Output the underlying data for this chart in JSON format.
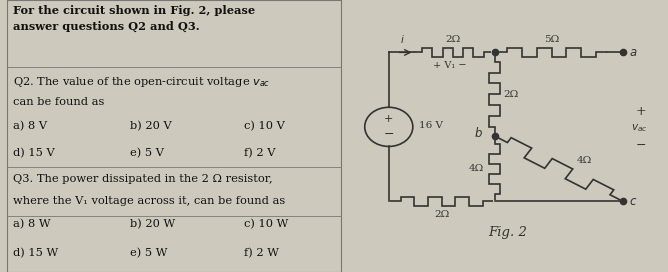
{
  "bg_color": "#cdc9bc",
  "text_color": "#111111",
  "title_bold": "For the circuit shown in Fig. 2, please\nanswer questions Q2 and Q3.",
  "q2_text_line1": "Q2. The value of the open-circuit voltage $v_{ac}$",
  "q2_text_line2": "can be found as",
  "q2_opts_row1": [
    "a) 8 V",
    "b) 20 V",
    "c) 10 V"
  ],
  "q2_opts_row2": [
    "d) 15 V",
    "e) 5 V",
    "f) 2 V"
  ],
  "q3_text_line1": "Q3. The power dissipated in the 2 Ω resistor,",
  "q3_text_line2": "where the V₁ voltage across it, can be found as",
  "q3_opts_row1": [
    "a) 8 W",
    "b) 20 W",
    "c) 10 W"
  ],
  "q3_opts_row2": [
    "d) 15 W",
    "e) 5 W",
    "f) 2 W"
  ],
  "fig_label": "Fig. 2",
  "wire_color": "#333333"
}
